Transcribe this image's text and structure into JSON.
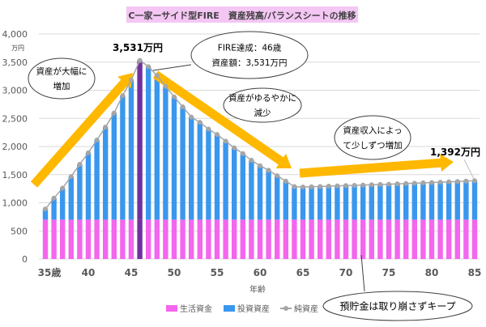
{
  "chart_data": {
    "type": "bar",
    "title": "C一家ーサイド型FIRE　資産残高/バランスシートの推移",
    "title_bg": "#f4c6f4",
    "xlabel": "年齢",
    "ylabel": "万円",
    "ylim": [
      0,
      4000
    ],
    "yticks": [
      "0",
      "500",
      "1,000",
      "1,500",
      "2,000",
      "2,500",
      "3,000",
      "3,500",
      "4,000"
    ],
    "xticks": [
      {
        "age": 35,
        "label": "35歳"
      },
      {
        "age": 40,
        "label": "40"
      },
      {
        "age": 45,
        "label": "45"
      },
      {
        "age": 50,
        "label": "50"
      },
      {
        "age": 55,
        "label": "55"
      },
      {
        "age": 60,
        "label": "60"
      },
      {
        "age": 65,
        "label": "65"
      },
      {
        "age": 70,
        "label": "70"
      },
      {
        "age": 75,
        "label": "75"
      },
      {
        "age": 80,
        "label": "80"
      },
      {
        "age": 85,
        "label": "85"
      }
    ],
    "grid": true,
    "legend_position": "bottom",
    "ages": [
      35,
      36,
      37,
      38,
      39,
      40,
      41,
      42,
      43,
      44,
      45,
      46,
      47,
      48,
      49,
      50,
      51,
      52,
      53,
      54,
      55,
      56,
      57,
      58,
      59,
      60,
      61,
      62,
      63,
      64,
      65,
      66,
      67,
      68,
      69,
      70,
      71,
      72,
      73,
      74,
      75,
      76,
      77,
      78,
      79,
      80,
      81,
      82,
      83,
      84,
      85
    ],
    "series": [
      {
        "name": "生活資金",
        "kind": "bar-stacked",
        "color": "#f466ee",
        "values": [
          700,
          700,
          700,
          700,
          700,
          700,
          700,
          700,
          700,
          700,
          700,
          700,
          700,
          700,
          700,
          700,
          700,
          700,
          700,
          700,
          700,
          700,
          700,
          700,
          700,
          700,
          700,
          700,
          700,
          700,
          700,
          700,
          700,
          700,
          700,
          700,
          700,
          700,
          700,
          700,
          700,
          700,
          700,
          700,
          700,
          700,
          700,
          700,
          700,
          700,
          700
        ]
      },
      {
        "name": "投資資産",
        "kind": "bar-stacked",
        "color": "#3a97ee",
        "values": [
          189,
          382,
          560,
          766,
          983,
          1189,
          1415,
          1646,
          1895,
          2205,
          2481,
          2831,
          2719,
          2562,
          2371,
          2181,
          2005,
          1824,
          1729,
          1610,
          1514,
          1395,
          1276,
          1175,
          1055,
          959,
          877,
          781,
          685,
          588,
          580,
          585,
          590,
          595,
          600,
          605,
          610,
          615,
          620,
          625,
          630,
          636,
          642,
          648,
          654,
          660,
          666,
          672,
          678,
          685,
          692
        ]
      },
      {
        "name": "純資産",
        "kind": "line",
        "color": "#a6a6a6",
        "values": [
          889,
          1082,
          1260,
          1466,
          1683,
          1889,
          2115,
          2346,
          2595,
          2905,
          3181,
          3531,
          3419,
          3262,
          3071,
          2881,
          2705,
          2524,
          2429,
          2310,
          2214,
          2095,
          1976,
          1875,
          1755,
          1659,
          1577,
          1481,
          1385,
          1288,
          1280,
          1285,
          1290,
          1295,
          1300,
          1305,
          1310,
          1315,
          1320,
          1325,
          1330,
          1336,
          1342,
          1348,
          1354,
          1360,
          1366,
          1372,
          1378,
          1385,
          1392
        ]
      }
    ],
    "highlight": {
      "age": 46,
      "color": "#7030a0"
    },
    "data_labels": [
      {
        "age": 46,
        "text": "3,531万円"
      },
      {
        "age": 85,
        "text": "1,392万円"
      }
    ],
    "annotations": [
      {
        "lines": [
          "資産が大幅に",
          "増加"
        ]
      },
      {
        "lines": [
          "FIRE達成：46歳",
          "資産額：3,531万円"
        ]
      },
      {
        "lines": [
          "資産がゆるやかに",
          "減少"
        ]
      },
      {
        "lines": [
          "資産収入によっ",
          "て少しずつ増加"
        ]
      },
      {
        "lines": [
          "預貯金は取り崩さずキープ"
        ]
      }
    ],
    "arrow_color": "#ffb800"
  }
}
